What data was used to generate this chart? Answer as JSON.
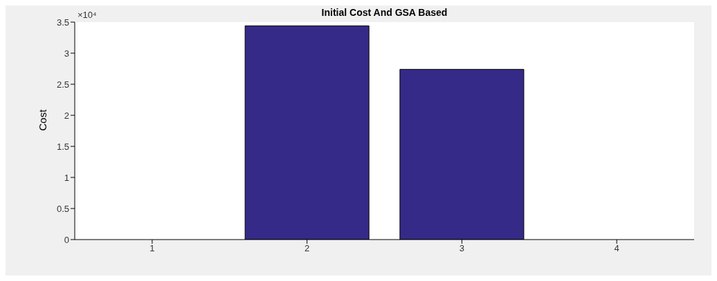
{
  "chart_data": {
    "type": "bar",
    "title": "Initial Cost And GSA Based",
    "ylabel": "Cost",
    "categories": [
      "1",
      "2",
      "3",
      "4"
    ],
    "values": [
      0,
      3.44,
      2.74,
      0
    ],
    "color": "#352a87",
    "ylim": [
      0,
      3.5
    ],
    "yticks": [
      0,
      0.5,
      1,
      1.5,
      2,
      2.5,
      3,
      3.5
    ],
    "annotations": [
      "×10⁴"
    ],
    "grid": false,
    "legend": false
  }
}
